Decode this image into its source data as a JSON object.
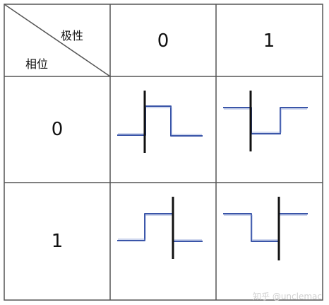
{
  "table": {
    "corner_top_label": "极性",
    "corner_bottom_label": "相位",
    "column_headers": [
      "0",
      "1"
    ],
    "row_headers": [
      "0",
      "1"
    ]
  },
  "colors": {
    "grid_line": "#555555",
    "signal_line": "#3a55a8",
    "axis_line": "#111111"
  },
  "watermark": "知乎 @unclemac"
}
